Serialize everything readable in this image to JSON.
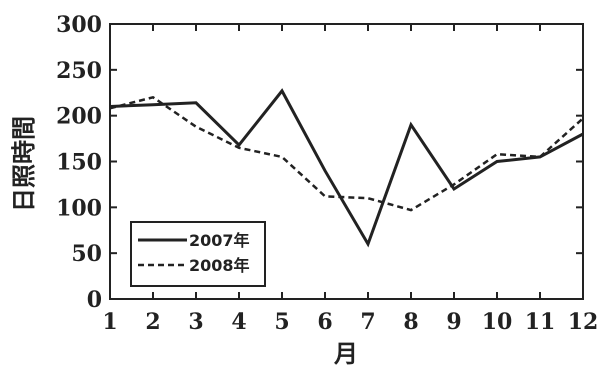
{
  "chart_data": {
    "type": "line",
    "title": "",
    "xlabel": "月",
    "ylabel": "日照時間",
    "categories": [
      "1",
      "2",
      "3",
      "4",
      "5",
      "6",
      "7",
      "8",
      "9",
      "10",
      "11",
      "12"
    ],
    "xlim": [
      1,
      12
    ],
    "ylim": [
      0,
      300
    ],
    "y_ticks": [
      "0",
      "50",
      "100",
      "150",
      "200",
      "250",
      "300"
    ],
    "grid": false,
    "legend_position": "bottom-left",
    "series": [
      {
        "name": "2007年",
        "style": "solid",
        "color": "#222222",
        "values": [
          210,
          212,
          214,
          168,
          227,
          140,
          60,
          190,
          120,
          150,
          155,
          180
        ]
      },
      {
        "name": "2008年",
        "style": "dashed",
        "color": "#222222",
        "values": [
          208,
          220,
          188,
          165,
          155,
          112,
          110,
          97,
          125,
          158,
          155,
          197
        ]
      }
    ]
  }
}
